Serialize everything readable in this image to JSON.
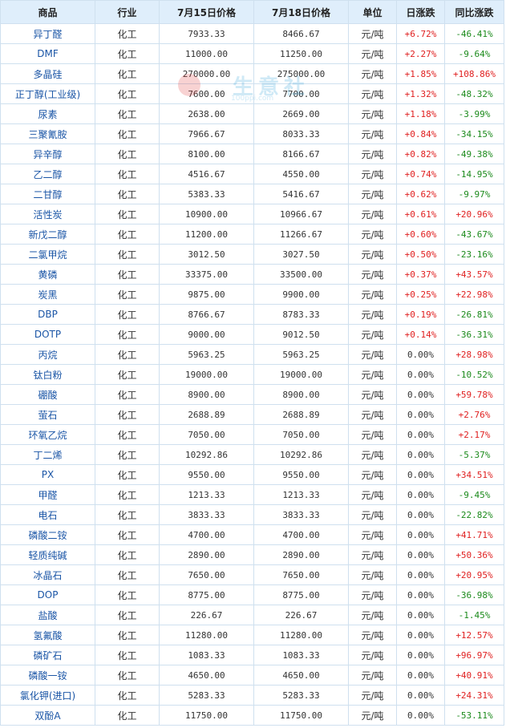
{
  "headers": [
    "商品",
    "行业",
    "7月15日价格",
    "7月18日价格",
    "单位",
    "日涨跌",
    "同比涨跌"
  ],
  "watermark": {
    "text": "生意社",
    "url": "100ppi.com"
  },
  "rows": [
    {
      "name": "异丁醛",
      "industry": "化工",
      "p1": "7933.33",
      "p2": "8466.67",
      "unit": "元/吨",
      "day": "+6.72%",
      "yoy": "-46.41%"
    },
    {
      "name": "DMF",
      "industry": "化工",
      "p1": "11000.00",
      "p2": "11250.00",
      "unit": "元/吨",
      "day": "+2.27%",
      "yoy": "-9.64%"
    },
    {
      "name": "多晶硅",
      "industry": "化工",
      "p1": "270000.00",
      "p2": "275000.00",
      "unit": "元/吨",
      "day": "+1.85%",
      "yoy": "+108.86%"
    },
    {
      "name": "正丁醇(工业级)",
      "industry": "化工",
      "p1": "7600.00",
      "p2": "7700.00",
      "unit": "元/吨",
      "day": "+1.32%",
      "yoy": "-48.32%"
    },
    {
      "name": "尿素",
      "industry": "化工",
      "p1": "2638.00",
      "p2": "2669.00",
      "unit": "元/吨",
      "day": "+1.18%",
      "yoy": "-3.99%"
    },
    {
      "name": "三聚氰胺",
      "industry": "化工",
      "p1": "7966.67",
      "p2": "8033.33",
      "unit": "元/吨",
      "day": "+0.84%",
      "yoy": "-34.15%"
    },
    {
      "name": "异辛醇",
      "industry": "化工",
      "p1": "8100.00",
      "p2": "8166.67",
      "unit": "元/吨",
      "day": "+0.82%",
      "yoy": "-49.38%"
    },
    {
      "name": "乙二醇",
      "industry": "化工",
      "p1": "4516.67",
      "p2": "4550.00",
      "unit": "元/吨",
      "day": "+0.74%",
      "yoy": "-14.95%"
    },
    {
      "name": "二甘醇",
      "industry": "化工",
      "p1": "5383.33",
      "p2": "5416.67",
      "unit": "元/吨",
      "day": "+0.62%",
      "yoy": "-9.97%"
    },
    {
      "name": "活性炭",
      "industry": "化工",
      "p1": "10900.00",
      "p2": "10966.67",
      "unit": "元/吨",
      "day": "+0.61%",
      "yoy": "+20.96%"
    },
    {
      "name": "新戊二醇",
      "industry": "化工",
      "p1": "11200.00",
      "p2": "11266.67",
      "unit": "元/吨",
      "day": "+0.60%",
      "yoy": "-43.67%"
    },
    {
      "name": "二氯甲烷",
      "industry": "化工",
      "p1": "3012.50",
      "p2": "3027.50",
      "unit": "元/吨",
      "day": "+0.50%",
      "yoy": "-23.16%"
    },
    {
      "name": "黄磷",
      "industry": "化工",
      "p1": "33375.00",
      "p2": "33500.00",
      "unit": "元/吨",
      "day": "+0.37%",
      "yoy": "+43.57%"
    },
    {
      "name": "炭黑",
      "industry": "化工",
      "p1": "9875.00",
      "p2": "9900.00",
      "unit": "元/吨",
      "day": "+0.25%",
      "yoy": "+22.98%"
    },
    {
      "name": "DBP",
      "industry": "化工",
      "p1": "8766.67",
      "p2": "8783.33",
      "unit": "元/吨",
      "day": "+0.19%",
      "yoy": "-26.81%"
    },
    {
      "name": "DOTP",
      "industry": "化工",
      "p1": "9000.00",
      "p2": "9012.50",
      "unit": "元/吨",
      "day": "+0.14%",
      "yoy": "-36.31%"
    },
    {
      "name": "丙烷",
      "industry": "化工",
      "p1": "5963.25",
      "p2": "5963.25",
      "unit": "元/吨",
      "day": "0.00%",
      "yoy": "+28.98%"
    },
    {
      "name": "钛白粉",
      "industry": "化工",
      "p1": "19000.00",
      "p2": "19000.00",
      "unit": "元/吨",
      "day": "0.00%",
      "yoy": "-10.52%"
    },
    {
      "name": "硼酸",
      "industry": "化工",
      "p1": "8900.00",
      "p2": "8900.00",
      "unit": "元/吨",
      "day": "0.00%",
      "yoy": "+59.78%"
    },
    {
      "name": "萤石",
      "industry": "化工",
      "p1": "2688.89",
      "p2": "2688.89",
      "unit": "元/吨",
      "day": "0.00%",
      "yoy": "+2.76%"
    },
    {
      "name": "环氧乙烷",
      "industry": "化工",
      "p1": "7050.00",
      "p2": "7050.00",
      "unit": "元/吨",
      "day": "0.00%",
      "yoy": "+2.17%"
    },
    {
      "name": "丁二烯",
      "industry": "化工",
      "p1": "10292.86",
      "p2": "10292.86",
      "unit": "元/吨",
      "day": "0.00%",
      "yoy": "-5.37%"
    },
    {
      "name": "PX",
      "industry": "化工",
      "p1": "9550.00",
      "p2": "9550.00",
      "unit": "元/吨",
      "day": "0.00%",
      "yoy": "+34.51%"
    },
    {
      "name": "甲醛",
      "industry": "化工",
      "p1": "1213.33",
      "p2": "1213.33",
      "unit": "元/吨",
      "day": "0.00%",
      "yoy": "-9.45%"
    },
    {
      "name": "电石",
      "industry": "化工",
      "p1": "3833.33",
      "p2": "3833.33",
      "unit": "元/吨",
      "day": "0.00%",
      "yoy": "-22.82%"
    },
    {
      "name": "磷酸二铵",
      "industry": "化工",
      "p1": "4700.00",
      "p2": "4700.00",
      "unit": "元/吨",
      "day": "0.00%",
      "yoy": "+41.71%"
    },
    {
      "name": "轻质纯碱",
      "industry": "化工",
      "p1": "2890.00",
      "p2": "2890.00",
      "unit": "元/吨",
      "day": "0.00%",
      "yoy": "+50.36%"
    },
    {
      "name": "冰晶石",
      "industry": "化工",
      "p1": "7650.00",
      "p2": "7650.00",
      "unit": "元/吨",
      "day": "0.00%",
      "yoy": "+20.95%"
    },
    {
      "name": "DOP",
      "industry": "化工",
      "p1": "8775.00",
      "p2": "8775.00",
      "unit": "元/吨",
      "day": "0.00%",
      "yoy": "-36.98%"
    },
    {
      "name": "盐酸",
      "industry": "化工",
      "p1": "226.67",
      "p2": "226.67",
      "unit": "元/吨",
      "day": "0.00%",
      "yoy": "-1.45%"
    },
    {
      "name": "氢氟酸",
      "industry": "化工",
      "p1": "11280.00",
      "p2": "11280.00",
      "unit": "元/吨",
      "day": "0.00%",
      "yoy": "+12.57%"
    },
    {
      "name": "磷矿石",
      "industry": "化工",
      "p1": "1083.33",
      "p2": "1083.33",
      "unit": "元/吨",
      "day": "0.00%",
      "yoy": "+96.97%"
    },
    {
      "name": "磷酸一铵",
      "industry": "化工",
      "p1": "4650.00",
      "p2": "4650.00",
      "unit": "元/吨",
      "day": "0.00%",
      "yoy": "+40.91%"
    },
    {
      "name": "氯化钾(进口)",
      "industry": "化工",
      "p1": "5283.33",
      "p2": "5283.33",
      "unit": "元/吨",
      "day": "0.00%",
      "yoy": "+24.31%"
    },
    {
      "name": "双酚A",
      "industry": "化工",
      "p1": "11750.00",
      "p2": "11750.00",
      "unit": "元/吨",
      "day": "0.00%",
      "yoy": "-53.11%"
    }
  ]
}
